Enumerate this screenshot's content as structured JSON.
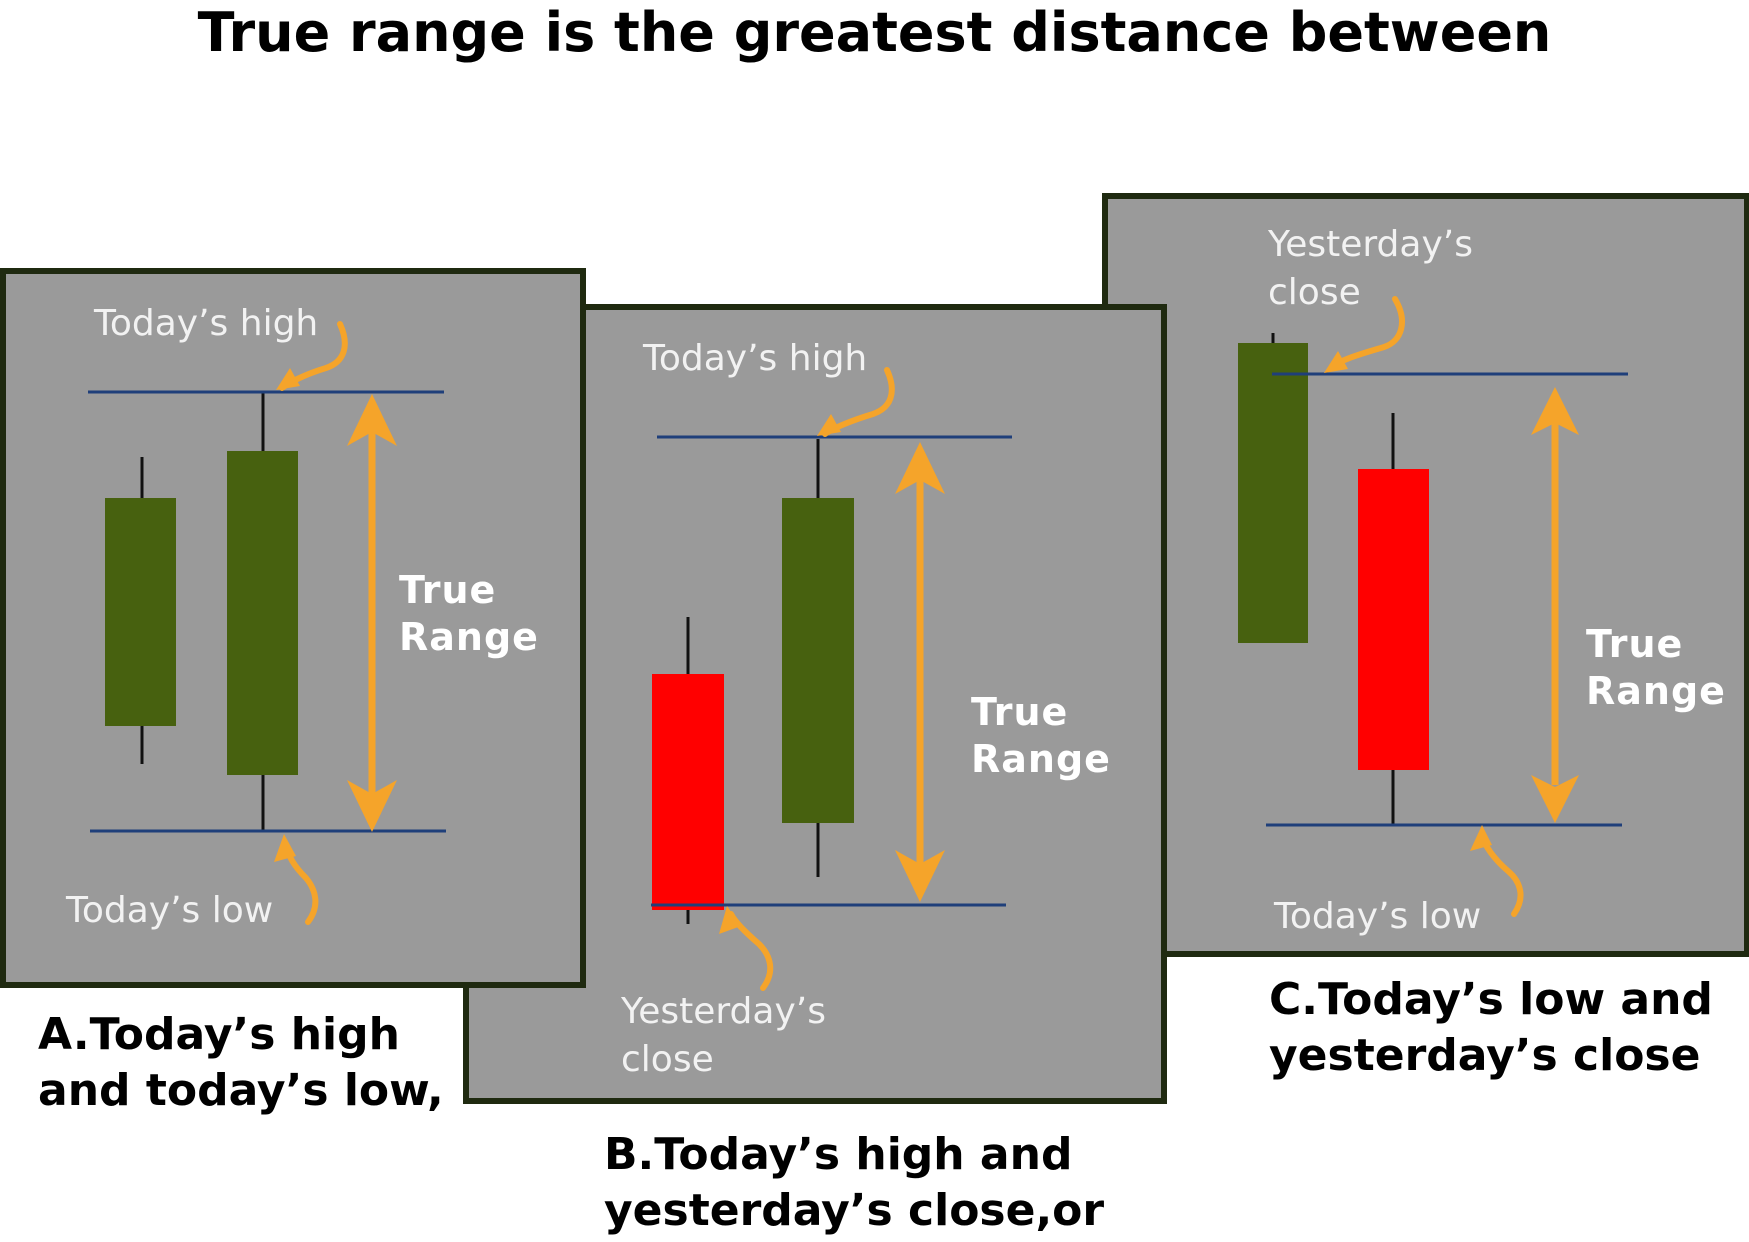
{
  "title": "True range is the greatest distance between",
  "colors": {
    "panel_bg": "#9a9a9a",
    "panel_border": "#1f2a10",
    "bullish_candle": "#47610f",
    "bearish_candle": "#ff0000",
    "level_line": "#1f3f7a",
    "arrow": "#f5a42a",
    "label_text": "#f2f2f2"
  },
  "panels": [
    {
      "id": "A",
      "top_label": [
        "Today’s high"
      ],
      "bottom_label": [
        "Today’s low"
      ],
      "range_label": [
        "True",
        "Range"
      ],
      "caption": [
        "A.Today’s high",
        "and today’s low,"
      ]
    },
    {
      "id": "B",
      "top_label": [
        "Today’s high"
      ],
      "bottom_label": [
        "Yesterday’s",
        "close"
      ],
      "range_label": [
        "True",
        "Range"
      ],
      "caption": [
        "B.Today’s high and",
        "yesterday’s close,or"
      ]
    },
    {
      "id": "C",
      "top_label": [
        "Yesterday’s",
        "close"
      ],
      "bottom_label": [
        "Today’s  low"
      ],
      "range_label": [
        "True",
        "Range"
      ],
      "caption": [
        "C.Today’s low and",
        "yesterday’s close"
      ]
    }
  ]
}
